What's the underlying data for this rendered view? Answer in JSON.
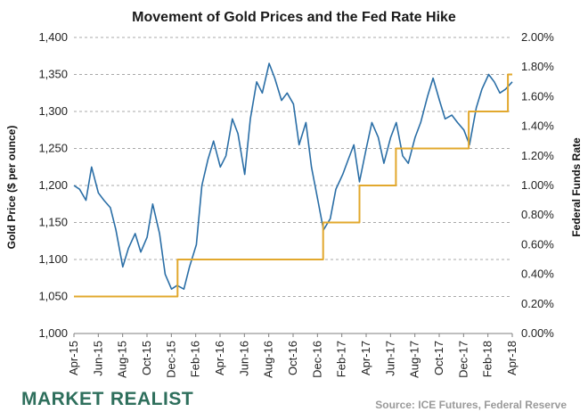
{
  "chart_data": {
    "type": "line",
    "title": "Movement of Gold Prices and the Fed Rate Hike",
    "ylabel_left": "Gold Price ($ per ounce)",
    "ylabel_right": "Federal Funds Rate",
    "ylim_left": [
      1000,
      1400
    ],
    "ylim_right": [
      0.0,
      2.0
    ],
    "xlim": [
      "2015-04",
      "2018-04"
    ],
    "grid": "horizontal-dashed",
    "y_ticks_left": [
      "1,000",
      "1,050",
      "1,100",
      "1,150",
      "1,200",
      "1,250",
      "1,300",
      "1,350",
      "1,400"
    ],
    "y_ticks_right": [
      "0.00%",
      "0.20%",
      "0.40%",
      "0.60%",
      "0.80%",
      "1.00%",
      "1.20%",
      "1.40%",
      "1.60%",
      "1.80%",
      "2.00%"
    ],
    "x_ticks": [
      "Apr-15",
      "Jun-15",
      "Aug-15",
      "Oct-15",
      "Dec-15",
      "Feb-16",
      "Apr-16",
      "Jun-16",
      "Aug-16",
      "Oct-16",
      "Dec-16",
      "Feb-17",
      "Apr-17",
      "Jun-17",
      "Aug-17",
      "Oct-17",
      "Dec-17",
      "Feb-18",
      "Apr-18"
    ],
    "series": [
      {
        "name": "Gold Price",
        "axis": "left",
        "color": "#2a6ea6",
        "points": [
          [
            "2015-04-01",
            1200
          ],
          [
            "2015-04-15",
            1195
          ],
          [
            "2015-05-01",
            1180
          ],
          [
            "2015-05-15",
            1225
          ],
          [
            "2015-06-01",
            1190
          ],
          [
            "2015-06-15",
            1180
          ],
          [
            "2015-07-01",
            1170
          ],
          [
            "2015-07-15",
            1140
          ],
          [
            "2015-08-01",
            1090
          ],
          [
            "2015-08-15",
            1115
          ],
          [
            "2015-09-01",
            1135
          ],
          [
            "2015-09-15",
            1110
          ],
          [
            "2015-10-01",
            1130
          ],
          [
            "2015-10-15",
            1175
          ],
          [
            "2015-11-01",
            1135
          ],
          [
            "2015-11-15",
            1080
          ],
          [
            "2015-12-01",
            1060
          ],
          [
            "2015-12-15",
            1065
          ],
          [
            "2016-01-01",
            1060
          ],
          [
            "2016-01-15",
            1090
          ],
          [
            "2016-02-01",
            1120
          ],
          [
            "2016-02-15",
            1200
          ],
          [
            "2016-03-01",
            1235
          ],
          [
            "2016-03-15",
            1260
          ],
          [
            "2016-04-01",
            1225
          ],
          [
            "2016-04-15",
            1240
          ],
          [
            "2016-05-01",
            1290
          ],
          [
            "2016-05-15",
            1270
          ],
          [
            "2016-06-01",
            1215
          ],
          [
            "2016-06-15",
            1290
          ],
          [
            "2016-07-01",
            1340
          ],
          [
            "2016-07-15",
            1325
          ],
          [
            "2016-08-01",
            1365
          ],
          [
            "2016-08-15",
            1345
          ],
          [
            "2016-09-01",
            1315
          ],
          [
            "2016-09-15",
            1325
          ],
          [
            "2016-10-01",
            1310
          ],
          [
            "2016-10-15",
            1255
          ],
          [
            "2016-11-01",
            1285
          ],
          [
            "2016-11-15",
            1225
          ],
          [
            "2016-12-01",
            1180
          ],
          [
            "2016-12-15",
            1140
          ],
          [
            "2017-01-01",
            1155
          ],
          [
            "2017-01-15",
            1195
          ],
          [
            "2017-02-01",
            1215
          ],
          [
            "2017-02-15",
            1235
          ],
          [
            "2017-03-01",
            1255
          ],
          [
            "2017-03-15",
            1205
          ],
          [
            "2017-04-01",
            1250
          ],
          [
            "2017-04-15",
            1285
          ],
          [
            "2017-05-01",
            1265
          ],
          [
            "2017-05-15",
            1230
          ],
          [
            "2017-06-01",
            1265
          ],
          [
            "2017-06-15",
            1285
          ],
          [
            "2017-07-01",
            1240
          ],
          [
            "2017-07-15",
            1230
          ],
          [
            "2017-08-01",
            1265
          ],
          [
            "2017-08-15",
            1285
          ],
          [
            "2017-09-01",
            1320
          ],
          [
            "2017-09-15",
            1345
          ],
          [
            "2017-10-01",
            1315
          ],
          [
            "2017-10-15",
            1290
          ],
          [
            "2017-11-01",
            1295
          ],
          [
            "2017-11-15",
            1285
          ],
          [
            "2017-12-01",
            1275
          ],
          [
            "2017-12-15",
            1255
          ],
          [
            "2018-01-01",
            1305
          ],
          [
            "2018-01-15",
            1330
          ],
          [
            "2018-02-01",
            1350
          ],
          [
            "2018-02-15",
            1340
          ],
          [
            "2018-03-01",
            1325
          ],
          [
            "2018-03-15",
            1330
          ],
          [
            "2018-04-01",
            1340
          ]
        ]
      },
      {
        "name": "Federal Funds Rate",
        "axis": "right",
        "color": "#e2a82d",
        "step": true,
        "points": [
          [
            "2015-04-01",
            0.25
          ],
          [
            "2015-12-16",
            0.5
          ],
          [
            "2016-12-14",
            0.75
          ],
          [
            "2017-03-15",
            1.0
          ],
          [
            "2017-06-14",
            1.25
          ],
          [
            "2017-12-13",
            1.5
          ],
          [
            "2018-03-21",
            1.75
          ],
          [
            "2018-04-01",
            1.75
          ]
        ]
      }
    ]
  },
  "brand": {
    "word1": "MARKET",
    "word2": "REALIST"
  },
  "source_note": "Source: ICE Futures, Federal Reserve"
}
